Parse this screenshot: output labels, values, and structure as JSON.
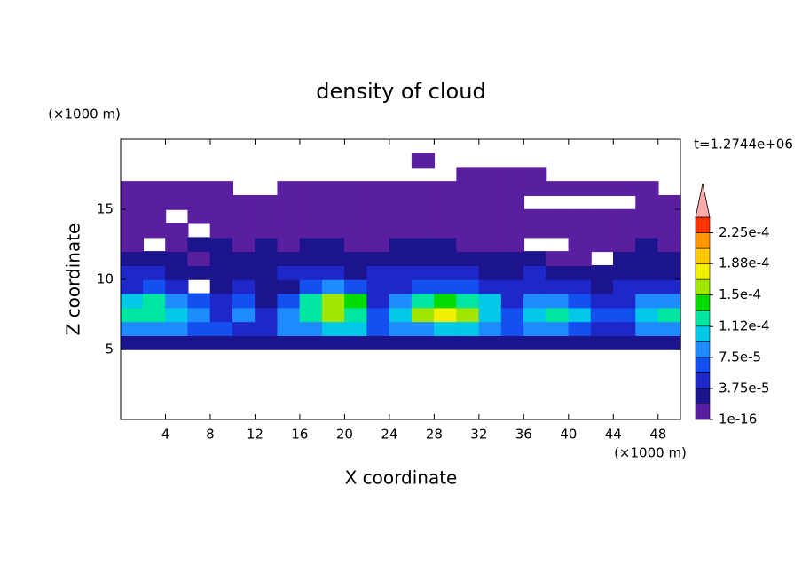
{
  "chart_data": {
    "type": "contour",
    "title": "density of cloud",
    "xlabel": "X coordinate",
    "ylabel": "Z coordinate",
    "x_unit_label": "(×1000 m)",
    "y_unit_label": "(×1000 m)",
    "time_label": "t=1.2744e+06",
    "xlim": [
      0,
      50
    ],
    "ylim": [
      0,
      20
    ],
    "xticks": [
      4,
      8,
      12,
      16,
      20,
      24,
      28,
      32,
      36,
      40,
      44,
      48
    ],
    "yticks": [
      5,
      10,
      15
    ],
    "x": [
      1,
      3,
      5,
      7,
      9,
      11,
      13,
      15,
      17,
      19,
      21,
      23,
      25,
      27,
      29,
      31,
      33,
      35,
      37,
      39,
      41,
      43,
      45,
      47,
      49
    ],
    "y": [
      5.5,
      6.5,
      7.5,
      8.5,
      9.5,
      10.5,
      11.5,
      12.5,
      13.5,
      14.5,
      15.5,
      16.5,
      17.5,
      18.5
    ],
    "z": [
      [
        3e-05,
        3e-05,
        3e-05,
        3e-05,
        3e-05,
        2e-05,
        3e-05,
        3e-05,
        3e-05,
        3e-05,
        3e-05,
        3e-05,
        3e-05,
        3e-05,
        3e-05,
        3e-05,
        3e-05,
        3e-05,
        3e-05,
        3e-05,
        3e-05,
        3e-05,
        3e-05,
        3e-05,
        3e-05
      ],
      [
        9e-05,
        9e-05,
        9e-05,
        7e-05,
        7e-05,
        5e-05,
        4e-05,
        9e-05,
        9e-05,
        0.00011,
        0.00011,
        7e-05,
        9e-05,
        9e-05,
        0.00011,
        0.00011,
        9e-05,
        7e-05,
        9e-05,
        9e-05,
        7e-05,
        5e-05,
        5e-05,
        9e-05,
        9e-05
      ],
      [
        0.00013,
        0.00012,
        0.00011,
        9e-05,
        5e-05,
        9e-05,
        5e-05,
        9e-05,
        0.00013,
        0.00015,
        0.00013,
        7e-05,
        0.00011,
        0.00015,
        0.00017,
        0.00015,
        0.00011,
        7e-05,
        0.00011,
        0.00012,
        0.0001,
        6e-05,
        7e-05,
        0.00011,
        0.00013
      ],
      [
        0.00011,
        0.00012,
        9e-05,
        6e-05,
        4e-05,
        7e-05,
        3e-05,
        6e-05,
        0.00012,
        0.00016,
        0.00014,
        5e-05,
        9e-05,
        0.00013,
        0.00014,
        0.00013,
        0.0001,
        5e-05,
        8e-05,
        9e-05,
        7e-05,
        4e-05,
        4e-05,
        8e-05,
        9e-05
      ],
      [
        5e-05,
        6e-05,
        5e-05,
        null,
        3e-05,
        4e-05,
        3e-05,
        3e-05,
        6e-05,
        9e-05,
        7e-05,
        4e-05,
        5e-05,
        7e-05,
        6e-05,
        6e-05,
        5e-05,
        4e-05,
        4e-05,
        5e-05,
        4e-05,
        3e-05,
        4e-05,
        4e-05,
        4e-05
      ],
      [
        4e-05,
        4e-05,
        3e-05,
        3e-05,
        3e-05,
        3e-05,
        3e-05,
        4e-05,
        4e-05,
        4e-05,
        3e-05,
        4e-05,
        4e-05,
        4e-05,
        4e-05,
        4e-05,
        3e-05,
        3e-05,
        4e-05,
        3e-05,
        2e-05,
        2e-05,
        3e-05,
        3e-05,
        3e-05
      ],
      [
        2e-05,
        2e-05,
        2e-05,
        1e-05,
        2e-05,
        2e-05,
        2e-05,
        2e-05,
        2e-05,
        2e-05,
        2e-05,
        2e-05,
        2e-05,
        2e-05,
        2e-05,
        2e-05,
        2e-05,
        2e-05,
        2e-05,
        1e-05,
        1e-05,
        null,
        2e-05,
        2e-05,
        2e-05
      ],
      [
        1e-05,
        null,
        1e-05,
        2e-05,
        2e-05,
        1e-05,
        2e-05,
        1e-05,
        2e-05,
        2e-05,
        1e-05,
        1e-05,
        2e-05,
        2e-05,
        2e-05,
        1e-05,
        1e-05,
        1e-05,
        null,
        null,
        1e-05,
        1e-05,
        1e-05,
        2e-05,
        1e-05
      ],
      [
        1e-05,
        1e-05,
        1e-05,
        null,
        1e-05,
        1e-05,
        1e-05,
        1e-05,
        1e-05,
        1e-05,
        1e-05,
        1e-05,
        1e-05,
        1e-05,
        1e-05,
        1e-05,
        1e-05,
        1e-05,
        1e-05,
        1e-05,
        1e-05,
        1e-05,
        1e-05,
        1e-05,
        1e-05
      ],
      [
        1e-05,
        1e-05,
        null,
        1e-05,
        1e-05,
        1e-05,
        1e-05,
        1e-05,
        1e-05,
        1e-05,
        1e-05,
        1e-05,
        1e-05,
        1e-05,
        1e-05,
        1e-05,
        1e-05,
        1e-05,
        1e-05,
        1e-05,
        1e-05,
        1e-05,
        1e-05,
        1e-05,
        1e-05
      ],
      [
        1e-05,
        1e-05,
        1e-05,
        1e-05,
        1e-05,
        1e-05,
        1e-05,
        1e-05,
        1e-05,
        1e-05,
        1e-05,
        1e-05,
        1e-05,
        1e-05,
        1e-05,
        1e-05,
        1e-05,
        1e-05,
        null,
        null,
        null,
        null,
        null,
        1e-05,
        1e-05
      ],
      [
        1e-05,
        1e-05,
        1e-05,
        1e-05,
        1e-05,
        null,
        null,
        1e-05,
        1e-05,
        1e-05,
        1e-05,
        1e-05,
        1e-05,
        1e-05,
        1e-05,
        1e-05,
        1e-05,
        1e-05,
        1e-05,
        1e-05,
        1e-05,
        1e-05,
        1e-05,
        1e-05,
        null
      ],
      [
        null,
        null,
        null,
        null,
        null,
        null,
        null,
        null,
        null,
        null,
        null,
        null,
        null,
        null,
        null,
        1e-05,
        1e-05,
        1e-05,
        1e-05,
        null,
        null,
        null,
        null,
        null,
        null
      ],
      [
        null,
        null,
        null,
        null,
        null,
        null,
        null,
        null,
        null,
        null,
        null,
        null,
        null,
        1e-05,
        null,
        null,
        null,
        null,
        null,
        null,
        null,
        null,
        null,
        null,
        null
      ]
    ],
    "levels": [
      1e-16,
      1.875e-05,
      3.75e-05,
      5.625e-05,
      7.5e-05,
      9.375e-05,
      0.0001125,
      0.00013125,
      0.00015,
      0.00016875,
      0.0001875,
      0.00020625,
      0.000225,
      0.00024375
    ],
    "colors": [
      "#5a1ea0",
      "#1c148c",
      "#1e28c8",
      "#1450f0",
      "#1e8cff",
      "#00c8e6",
      "#00e6a0",
      "#00dc00",
      "#a0e600",
      "#f0f000",
      "#ffc800",
      "#ff9600",
      "#ff3200"
    ],
    "extend_color": "#ffaaaa",
    "cbar_ticks": [
      {
        "value": 1e-16,
        "label": "1e-16"
      },
      {
        "value": 3.75e-05,
        "label": "3.75e-5"
      },
      {
        "value": 7.5e-05,
        "label": "7.5e-5"
      },
      {
        "value": 0.000112,
        "label": "1.12e-4"
      },
      {
        "value": 0.00015,
        "label": "1.5e-4"
      },
      {
        "value": 0.000188,
        "label": "1.88e-4"
      },
      {
        "value": 0.000225,
        "label": "2.25e-4"
      }
    ]
  }
}
